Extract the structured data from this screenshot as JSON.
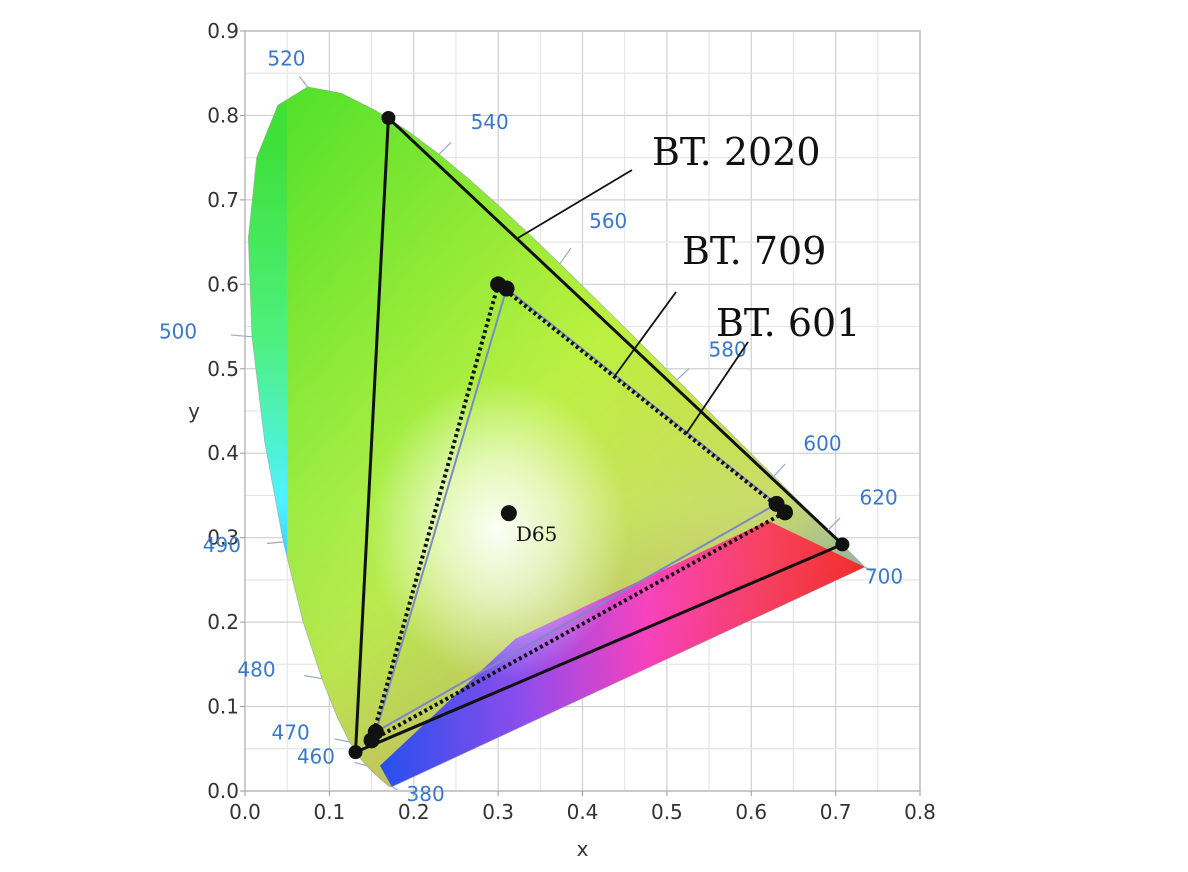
{
  "chart_data": {
    "type": "scatter",
    "title": "",
    "xlabel": "x",
    "ylabel": "y",
    "xlim": [
      0.0,
      0.8
    ],
    "ylim": [
      0.0,
      0.9
    ],
    "x_ticks": [
      "0.0",
      "0.1",
      "0.2",
      "0.3",
      "0.4",
      "0.5",
      "0.6",
      "0.7",
      "0.8"
    ],
    "y_ticks": [
      "0.0",
      "0.1",
      "0.2",
      "0.3",
      "0.4",
      "0.5",
      "0.6",
      "0.7",
      "0.8",
      "0.9"
    ],
    "grid": true,
    "spectral_locus": [
      {
        "label": "380",
        "x": 0.174,
        "y": 0.005
      },
      {
        "label": "460",
        "x": 0.144,
        "y": 0.03
      },
      {
        "label": "470",
        "x": 0.124,
        "y": 0.058
      },
      {
        "label": "480",
        "x": 0.091,
        "y": 0.133
      },
      {
        "label": "490",
        "x": 0.045,
        "y": 0.295
      },
      {
        "label": "500",
        "x": 0.008,
        "y": 0.538
      },
      {
        "label": "520",
        "x": 0.074,
        "y": 0.834
      },
      {
        "label": "540",
        "x": 0.23,
        "y": 0.754
      },
      {
        "label": "560",
        "x": 0.373,
        "y": 0.624
      },
      {
        "label": "580",
        "x": 0.512,
        "y": 0.487
      },
      {
        "label": "600",
        "x": 0.627,
        "y": 0.373
      },
      {
        "label": "620",
        "x": 0.691,
        "y": 0.309
      },
      {
        "label": "700",
        "x": 0.735,
        "y": 0.265
      }
    ],
    "series": [
      {
        "name": "BT. 2020",
        "line": "solid",
        "points": [
          [
            0.708,
            0.292
          ],
          [
            0.17,
            0.797
          ],
          [
            0.131,
            0.046
          ]
        ]
      },
      {
        "name": "BT. 709",
        "line": "dotted",
        "points": [
          [
            0.64,
            0.33
          ],
          [
            0.3,
            0.6
          ],
          [
            0.15,
            0.06
          ]
        ]
      },
      {
        "name": "BT. 601",
        "line": "dashed",
        "points": [
          [
            0.63,
            0.34
          ],
          [
            0.31,
            0.595
          ],
          [
            0.155,
            0.07
          ]
        ]
      }
    ],
    "white_point": {
      "name": "D65",
      "x": 0.3127,
      "y": 0.329
    }
  }
}
